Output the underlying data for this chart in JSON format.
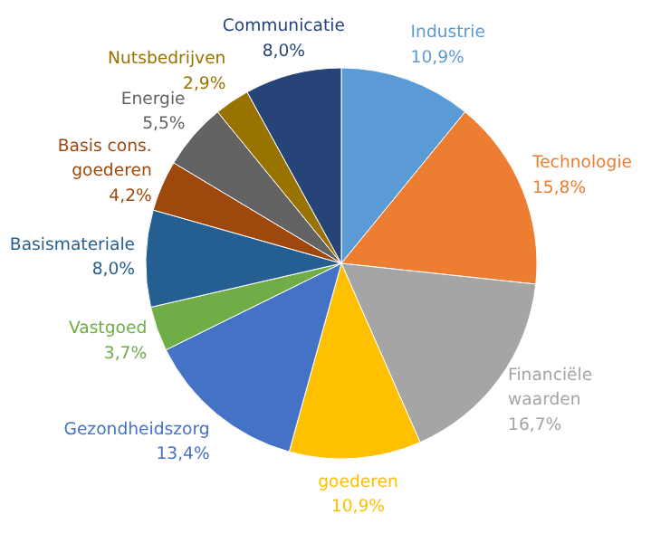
{
  "chart_data": {
    "type": "pie",
    "categories": [
      "Industrie",
      "Technologie",
      "Financiële\nwaarden",
      "goederen",
      "Gezondheidszorg",
      "Vastgoed",
      "Basismateriale",
      "Basis cons.\ngoederen",
      "Energie",
      "Nutsbedrijven",
      "Communicatie"
    ],
    "values": [
      10.9,
      15.8,
      16.7,
      10.9,
      13.4,
      3.7,
      8.0,
      4.2,
      5.5,
      2.9,
      8.0
    ],
    "value_labels": [
      "10,9%",
      "15,8%",
      "16,7%",
      "10,9%",
      "13,4%",
      "3,7%",
      "8,0%",
      "4,2%",
      "5,5%",
      "2,9%",
      "8,0%"
    ],
    "colors": [
      "#5b9bd5",
      "#ed7d31",
      "#a5a5a5",
      "#ffc000",
      "#4472c4",
      "#70ad47",
      "#255e91",
      "#9e480e",
      "#636363",
      "#997300",
      "#264478"
    ]
  }
}
